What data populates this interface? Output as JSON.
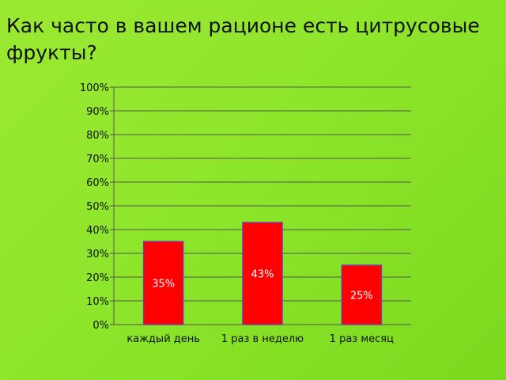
{
  "chart_data": {
    "type": "bar",
    "title": "Как часто в вашем рационе есть цитрусовые фрукты?",
    "categories": [
      "каждый день",
      "1 раз в неделю",
      "1 раз месяц"
    ],
    "values": [
      35,
      43,
      25
    ],
    "data_labels": [
      "35%",
      "43%",
      "25%"
    ],
    "ylim": [
      0,
      100
    ],
    "y_ticks": [
      0,
      10,
      20,
      30,
      40,
      50,
      60,
      70,
      80,
      90,
      100
    ],
    "y_tick_format": "%",
    "grid": true,
    "bar_color": "#ff0000",
    "bar_border_color": "#7a3fa0"
  }
}
